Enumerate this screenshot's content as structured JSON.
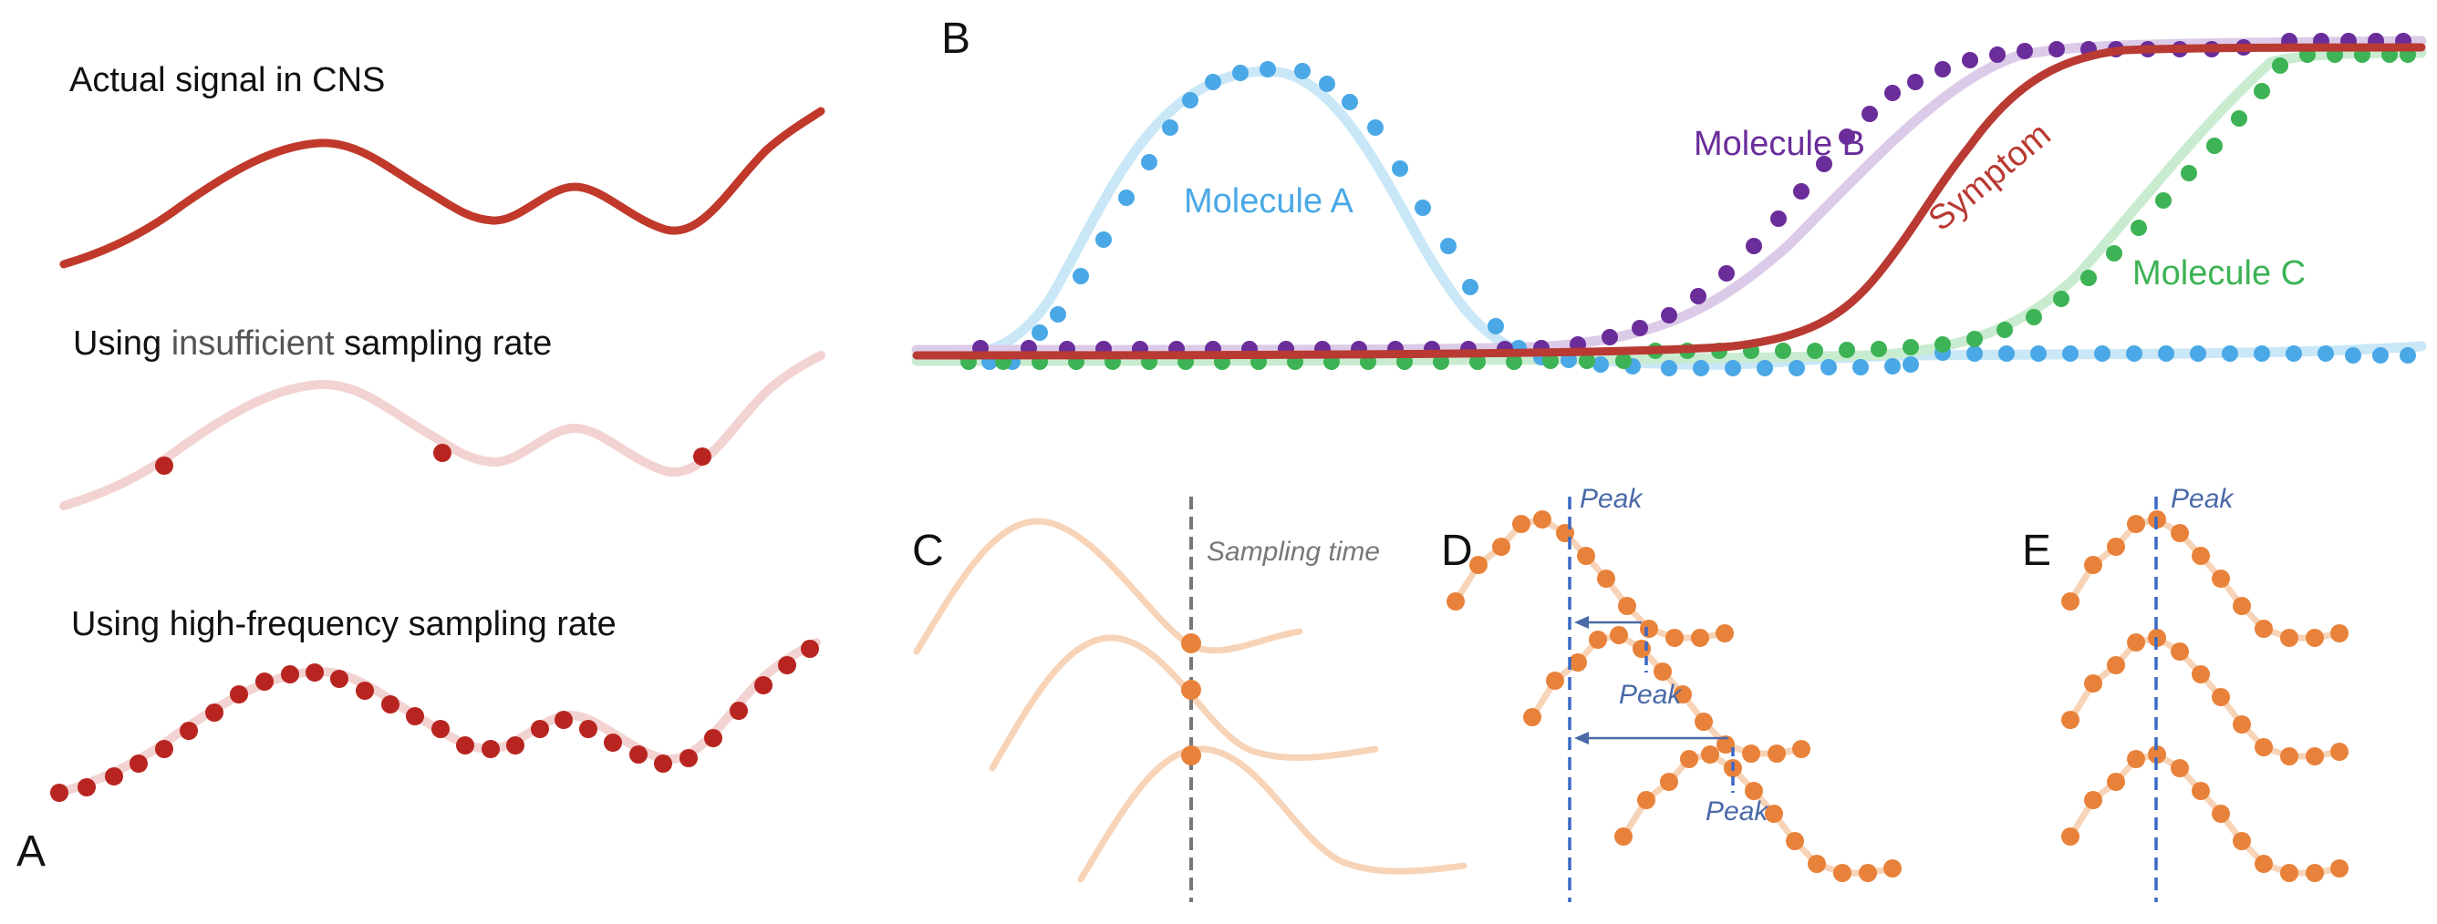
{
  "panels": {
    "a": {
      "letter": "A",
      "labels": {
        "actual": "Actual signal in CNS",
        "insufficient_prefix": "Using ",
        "insufficient_word": "insufficient",
        "insufficient_suffix": " sampling rate",
        "high": "Using high-frequency sampling rate"
      }
    },
    "b": {
      "letter": "B",
      "series": {
        "molecule_a": "Molecule A",
        "molecule_b": "Molecule B",
        "molecule_c": "Molecule C",
        "symptom": "Symptom"
      }
    },
    "c": {
      "letter": "C",
      "sampling_label": "Sampling time"
    },
    "d": {
      "letter": "D",
      "peak_label": "Peak"
    },
    "e": {
      "letter": "E",
      "peak_label": "Peak"
    }
  },
  "colors": {
    "signal": "#c0392b",
    "signal_faint": "#f2d3d1",
    "dot_red": "#b82520",
    "molecule_a": "#4aa8e6",
    "molecule_a_faint": "#c9e7f7",
    "molecule_b": "#6a2d9a",
    "molecule_b_faint": "#dccbe8",
    "molecule_c": "#3db355",
    "molecule_c_faint": "#c9ecd0",
    "symptom": "#b83a32",
    "orange_dot": "#e8823a",
    "orange_line": "#f7d3b7",
    "blue_dash": "#3a68c4",
    "gray_dash": "#777777",
    "annotation": "#4a6aa8"
  }
}
